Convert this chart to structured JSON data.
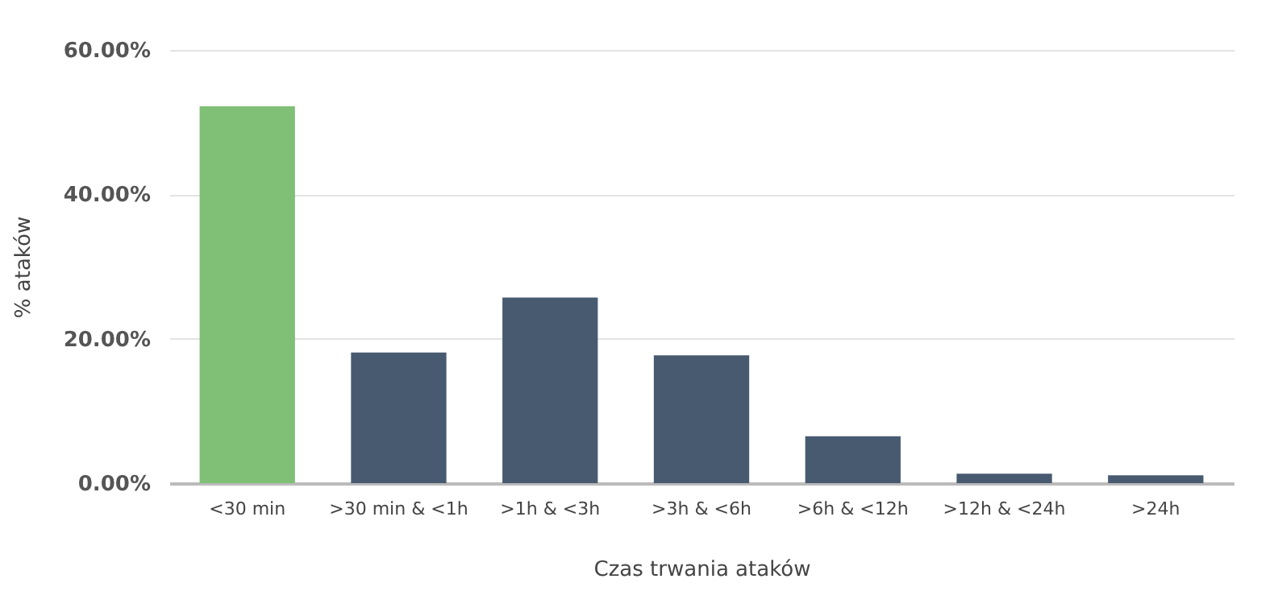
{
  "chart_data": {
    "type": "bar",
    "xlabel": "Czas trwania ataków",
    "ylabel": "% ataków",
    "categories": [
      "<30 min",
      ">30 min & <1h",
      ">1h & <3h",
      ">3h & <6h",
      ">6h & <12h",
      ">12h & <24h",
      ">24h"
    ],
    "values": [
      52.2,
      18.1,
      25.7,
      17.7,
      6.5,
      1.3,
      1.1
    ],
    "colors": [
      "#7fbf76",
      "#485a70",
      "#485a70",
      "#485a70",
      "#485a70",
      "#485a70",
      "#485a70"
    ],
    "ylim": [
      0,
      60
    ],
    "yticks": [
      {
        "value": 0,
        "label": "0.00%"
      },
      {
        "value": 20,
        "label": "20.00%"
      },
      {
        "value": 40,
        "label": "40.00%"
      },
      {
        "value": 60,
        "label": "60.00%"
      }
    ],
    "grid": "y"
  }
}
